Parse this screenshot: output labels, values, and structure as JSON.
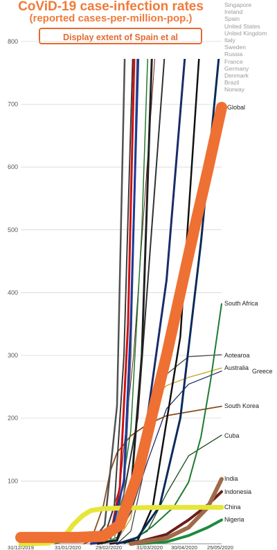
{
  "title": "CoViD-19 case-infection rates",
  "subtitle": "(reported cases-per-million-pop.)",
  "button_label": "Display extent of Spain et al",
  "legend": [
    "Singapore",
    "Ireland",
    "Spain",
    "United States",
    "United Kingdom",
    "Italy",
    "Sweden",
    "Russia",
    "France",
    "Germany",
    "Denmark",
    "Brazil",
    "Norway"
  ],
  "colors": {
    "title": "#f07a3a",
    "global": "#ef7033",
    "china": "#e6e63a",
    "india": "#a06a4a",
    "indonesia": "#6a1e1a",
    "south_africa": "#1e7a30",
    "south_korea": "#8a4a1a",
    "australia": "#c8a020",
    "greece": "#1a2a6a",
    "aotearoa": "#444444",
    "cuba": "#1a4a1a",
    "nigeria": "#1e8a40"
  },
  "chart_data": {
    "type": "line",
    "title": "CoViD-19 case-infection rates",
    "subtitle": "(reported cases-per-million-pop.)",
    "x_ticks": [
      "31/12/2019",
      "31/01/2020",
      "29/02/2020",
      "31/03/2020",
      "30/04/2020",
      "25/05/2020"
    ],
    "y_ticks": [
      100,
      200,
      300,
      400,
      500,
      600,
      700,
      800
    ],
    "ylim": [
      0,
      810
    ],
    "x_range": [
      "2019-12-31",
      "2020-05-25"
    ],
    "grid": true,
    "series": [
      {
        "name": "Global",
        "label": "Global",
        "color": "#ef7033",
        "width": 16,
        "points": [
          [
            "2019-12-31",
            10
          ],
          [
            "2020-01-20",
            10
          ],
          [
            "2020-02-10",
            10
          ],
          [
            "2020-02-29",
            12
          ],
          [
            "2020-03-12",
            30
          ],
          [
            "2020-03-25",
            110
          ],
          [
            "2020-04-05",
            210
          ],
          [
            "2020-04-15",
            300
          ],
          [
            "2020-04-25",
            400
          ],
          [
            "2020-05-05",
            500
          ],
          [
            "2020-05-15",
            595
          ],
          [
            "2020-05-25",
            695
          ]
        ]
      },
      {
        "name": "China",
        "label": "China",
        "color": "#e6e63a",
        "width": 7,
        "points": [
          [
            "2019-12-31",
            0
          ],
          [
            "2020-01-20",
            1
          ],
          [
            "2020-01-31",
            10
          ],
          [
            "2020-02-07",
            30
          ],
          [
            "2020-02-14",
            45
          ],
          [
            "2020-02-20",
            53
          ],
          [
            "2020-02-29",
            56
          ],
          [
            "2020-03-15",
            57
          ],
          [
            "2020-04-15",
            58
          ],
          [
            "2020-05-25",
            58
          ]
        ]
      },
      {
        "name": "India",
        "label": "India",
        "color": "#a06a4a",
        "width": 6,
        "points": [
          [
            "2020-03-20",
            0
          ],
          [
            "2020-04-15",
            9
          ],
          [
            "2020-05-01",
            26
          ],
          [
            "2020-05-15",
            58
          ],
          [
            "2020-05-25",
            103
          ]
        ]
      },
      {
        "name": "Indonesia",
        "label": "Indonesia",
        "color": "#6a1e1a",
        "width": 4,
        "points": [
          [
            "2020-03-20",
            0
          ],
          [
            "2020-04-15",
            15
          ],
          [
            "2020-05-01",
            38
          ],
          [
            "2020-05-15",
            62
          ],
          [
            "2020-05-25",
            83
          ]
        ]
      },
      {
        "name": "South Africa",
        "label": "South Africa",
        "color": "#1e7a30",
        "width": 2,
        "points": [
          [
            "2020-03-05",
            0
          ],
          [
            "2020-03-20",
            3
          ],
          [
            "2020-04-05",
            28
          ],
          [
            "2020-04-20",
            58
          ],
          [
            "2020-05-01",
            98
          ],
          [
            "2020-05-10",
            170
          ],
          [
            "2020-05-17",
            260
          ],
          [
            "2020-05-25",
            382
          ]
        ]
      },
      {
        "name": "Aotearoa",
        "label": "Aotearoa",
        "color": "#444444",
        "width": 1.3,
        "points": [
          [
            "2020-03-10",
            0
          ],
          [
            "2020-03-20",
            20
          ],
          [
            "2020-03-28",
            100
          ],
          [
            "2020-04-05",
            200
          ],
          [
            "2020-04-15",
            270
          ],
          [
            "2020-05-01",
            298
          ],
          [
            "2020-05-25",
            301
          ]
        ]
      },
      {
        "name": "Australia",
        "label": "Australia",
        "color": "#c8a020",
        "width": 1.3,
        "points": [
          [
            "2020-02-25",
            2
          ],
          [
            "2020-03-10",
            5
          ],
          [
            "2020-03-20",
            40
          ],
          [
            "2020-03-28",
            150
          ],
          [
            "2020-04-05",
            230
          ],
          [
            "2020-04-15",
            252
          ],
          [
            "2020-05-01",
            265
          ],
          [
            "2020-05-25",
            280
          ]
        ]
      },
      {
        "name": "Greece",
        "label": "Greece",
        "color": "#1a2a6a",
        "width": 1.3,
        "points": [
          [
            "2020-02-26",
            0
          ],
          [
            "2020-03-10",
            10
          ],
          [
            "2020-03-20",
            50
          ],
          [
            "2020-04-01",
            130
          ],
          [
            "2020-04-15",
            215
          ],
          [
            "2020-05-01",
            254
          ],
          [
            "2020-05-25",
            275
          ]
        ]
      },
      {
        "name": "South Korea",
        "label": "South Korea",
        "color": "#8a4a1a",
        "width": 1.8,
        "points": [
          [
            "2020-02-15",
            0
          ],
          [
            "2020-02-20",
            5
          ],
          [
            "2020-02-29",
            60
          ],
          [
            "2020-03-05",
            115
          ],
          [
            "2020-03-10",
            145
          ],
          [
            "2020-03-20",
            172
          ],
          [
            "2020-04-01",
            190
          ],
          [
            "2020-04-15",
            204
          ],
          [
            "2020-05-01",
            210
          ],
          [
            "2020-05-25",
            219
          ]
        ]
      },
      {
        "name": "Cuba",
        "label": "Cuba",
        "color": "#1a4a1a",
        "width": 1.3,
        "points": [
          [
            "2020-03-15",
            0
          ],
          [
            "2020-04-01",
            20
          ],
          [
            "2020-04-15",
            80
          ],
          [
            "2020-05-01",
            140
          ],
          [
            "2020-05-25",
            173
          ]
        ]
      },
      {
        "name": "Nigeria",
        "label": "Nigeria",
        "color": "#1e8a40",
        "width": 4,
        "points": [
          [
            "2020-03-25",
            0
          ],
          [
            "2020-04-15",
            3
          ],
          [
            "2020-05-01",
            13
          ],
          [
            "2020-05-15",
            26
          ],
          [
            "2020-05-25",
            38
          ]
        ]
      },
      {
        "name": "Singapore",
        "color": "#1e7a2a",
        "width": 1.5,
        "points": [
          [
            "2020-01-25",
            0
          ],
          [
            "2020-02-15",
            12
          ],
          [
            "2020-03-01",
            18
          ],
          [
            "2020-03-10",
            35
          ],
          [
            "2020-03-20",
            180
          ],
          [
            "2020-03-28",
            500
          ],
          [
            "2020-04-02",
            820
          ]
        ]
      },
      {
        "name": "Ireland",
        "color": "#4ab840",
        "width": 1.5,
        "points": [
          [
            "2020-02-25",
            0
          ],
          [
            "2020-03-08",
            8
          ],
          [
            "2020-03-15",
            80
          ],
          [
            "2020-03-20",
            300
          ],
          [
            "2020-03-26",
            820
          ]
        ]
      },
      {
        "name": "Spain",
        "color": "#d01010",
        "width": 3,
        "points": [
          [
            "2020-02-20",
            0
          ],
          [
            "2020-03-05",
            10
          ],
          [
            "2020-03-12",
            90
          ],
          [
            "2020-03-18",
            350
          ],
          [
            "2020-03-23",
            820
          ]
        ]
      },
      {
        "name": "United States",
        "color": "#1a2a6a",
        "width": 3,
        "points": [
          [
            "2020-02-20",
            0
          ],
          [
            "2020-03-10",
            5
          ],
          [
            "2020-03-20",
            60
          ],
          [
            "2020-04-01",
            200
          ],
          [
            "2020-04-15",
            420
          ],
          [
            "2020-04-30",
            820
          ]
        ]
      },
      {
        "name": "United Kingdom",
        "color": "#202020",
        "width": 3,
        "points": [
          [
            "2020-02-25",
            0
          ],
          [
            "2020-03-10",
            6
          ],
          [
            "2020-03-20",
            80
          ],
          [
            "2020-03-28",
            300
          ],
          [
            "2020-04-05",
            820
          ]
        ]
      },
      {
        "name": "Italy",
        "color": "#505050",
        "width": 2.5,
        "points": [
          [
            "2020-02-20",
            0
          ],
          [
            "2020-03-01",
            30
          ],
          [
            "2020-03-10",
            220
          ],
          [
            "2020-03-16",
            820
          ]
        ]
      },
      {
        "name": "Sweden",
        "color": "#303030",
        "width": 2,
        "points": [
          [
            "2020-02-28",
            0
          ],
          [
            "2020-03-10",
            20
          ],
          [
            "2020-03-25",
            200
          ],
          [
            "2020-04-15",
            820
          ]
        ]
      },
      {
        "name": "Russia",
        "color": "#101010",
        "width": 2.5,
        "points": [
          [
            "2020-03-05",
            0
          ],
          [
            "2020-03-25",
            5
          ],
          [
            "2020-04-05",
            60
          ],
          [
            "2020-04-25",
            330
          ],
          [
            "2020-05-10",
            820
          ]
        ]
      },
      {
        "name": "France",
        "color": "#1a3a9a",
        "width": 3,
        "points": [
          [
            "2020-02-20",
            0
          ],
          [
            "2020-03-05",
            10
          ],
          [
            "2020-03-15",
            100
          ],
          [
            "2020-03-20",
            350
          ],
          [
            "2020-03-26",
            820
          ]
        ]
      },
      {
        "name": "Germany",
        "color": "#707070",
        "width": 2,
        "points": [
          [
            "2020-02-22",
            0
          ],
          [
            "2020-03-05",
            5
          ],
          [
            "2020-03-15",
            80
          ],
          [
            "2020-03-20",
            300
          ],
          [
            "2020-03-25",
            820
          ]
        ]
      },
      {
        "name": "Denmark",
        "color": "#6a1a1a",
        "width": 1,
        "points": [
          [
            "2020-02-28",
            0
          ],
          [
            "2020-03-12",
            90
          ],
          [
            "2020-03-22",
            300
          ],
          [
            "2020-04-08",
            820
          ]
        ]
      },
      {
        "name": "Brazil",
        "color": "#0a2a5a",
        "width": 3,
        "points": [
          [
            "2020-03-10",
            0
          ],
          [
            "2020-03-25",
            10
          ],
          [
            "2020-04-10",
            60
          ],
          [
            "2020-04-25",
            200
          ],
          [
            "2020-05-10",
            480
          ],
          [
            "2020-05-25",
            820
          ]
        ]
      },
      {
        "name": "Norway",
        "color": "#3a3a3a",
        "width": 2,
        "points": [
          [
            "2020-02-28",
            0
          ],
          [
            "2020-03-08",
            60
          ],
          [
            "2020-03-15",
            300
          ],
          [
            "2020-03-22",
            820
          ]
        ]
      }
    ]
  }
}
